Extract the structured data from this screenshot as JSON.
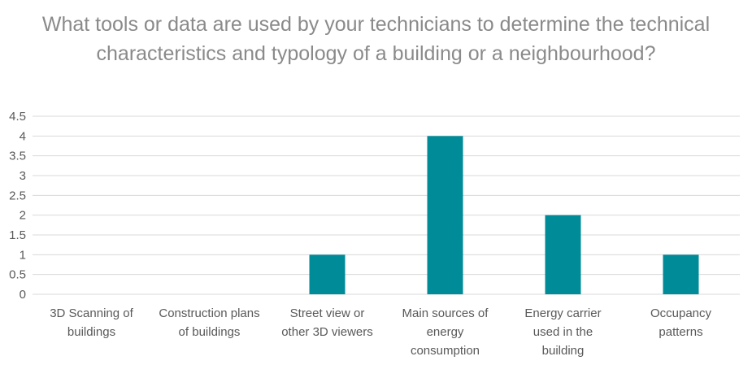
{
  "chart_data": {
    "type": "bar",
    "title": "What tools or data are used by your technicians to determine the technical characteristics and typology of a building or a neighbourhood?",
    "categories": [
      "3D Scanning of buildings",
      "Construction plans of buildings",
      "Street view or other 3D viewers",
      "Main sources of energy consumption",
      "Energy carrier used in the building",
      "Occupancy patterns"
    ],
    "category_label_lines": [
      [
        "3D Scanning of",
        "buildings"
      ],
      [
        "Construction plans",
        "of buildings"
      ],
      [
        "Street view or",
        "other 3D viewers"
      ],
      [
        "Main sources of",
        "energy",
        "consumption"
      ],
      [
        "Energy carrier",
        "used in the",
        "building"
      ],
      [
        "Occupancy",
        "patterns"
      ]
    ],
    "values": [
      0,
      0,
      1,
      4,
      2,
      1
    ],
    "ylim": [
      0,
      4.5
    ],
    "yticks": [
      "0",
      "0.5",
      "1",
      "1.5",
      "2",
      "2.5",
      "3",
      "3.5",
      "4",
      "4.5"
    ],
    "xlabel": "",
    "ylabel": "",
    "grid": true,
    "colors": {
      "bar": "#008b99",
      "grid": "#d9d9d9",
      "text": "#595959",
      "title": "#8a8a8a"
    }
  }
}
